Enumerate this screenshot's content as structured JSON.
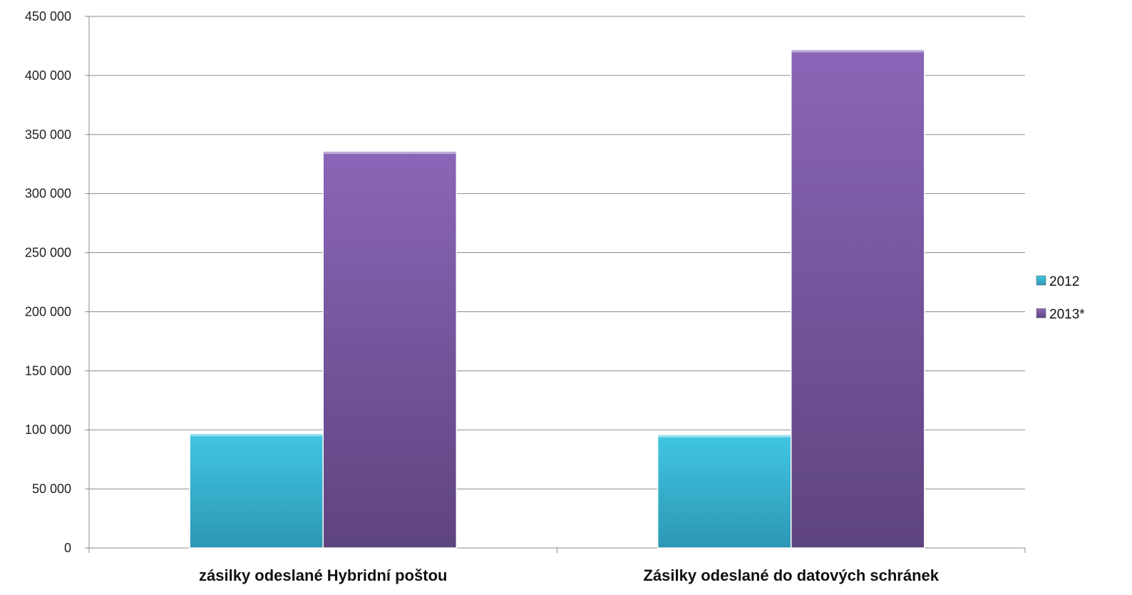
{
  "chart_data": {
    "type": "bar",
    "title": "",
    "xlabel": "",
    "ylabel": "",
    "categories": [
      "zásilky odeslané Hybridní poštou",
      "Zásilky odeslané do datových schránek"
    ],
    "series": [
      {
        "name": "2012",
        "color": "#37BCD9",
        "values": [
          97000,
          96000
        ]
      },
      {
        "name": "2013*",
        "color": "#7E58A8",
        "values": [
          336000,
          422000
        ]
      }
    ],
    "ylim": [
      0,
      450000
    ],
    "yticks": [
      "0",
      "50 000",
      "100 000",
      "150 000",
      "200 000",
      "250 000",
      "300 000",
      "350 000",
      "400 000",
      "450 000"
    ],
    "grid": true,
    "legend_position": "right"
  }
}
